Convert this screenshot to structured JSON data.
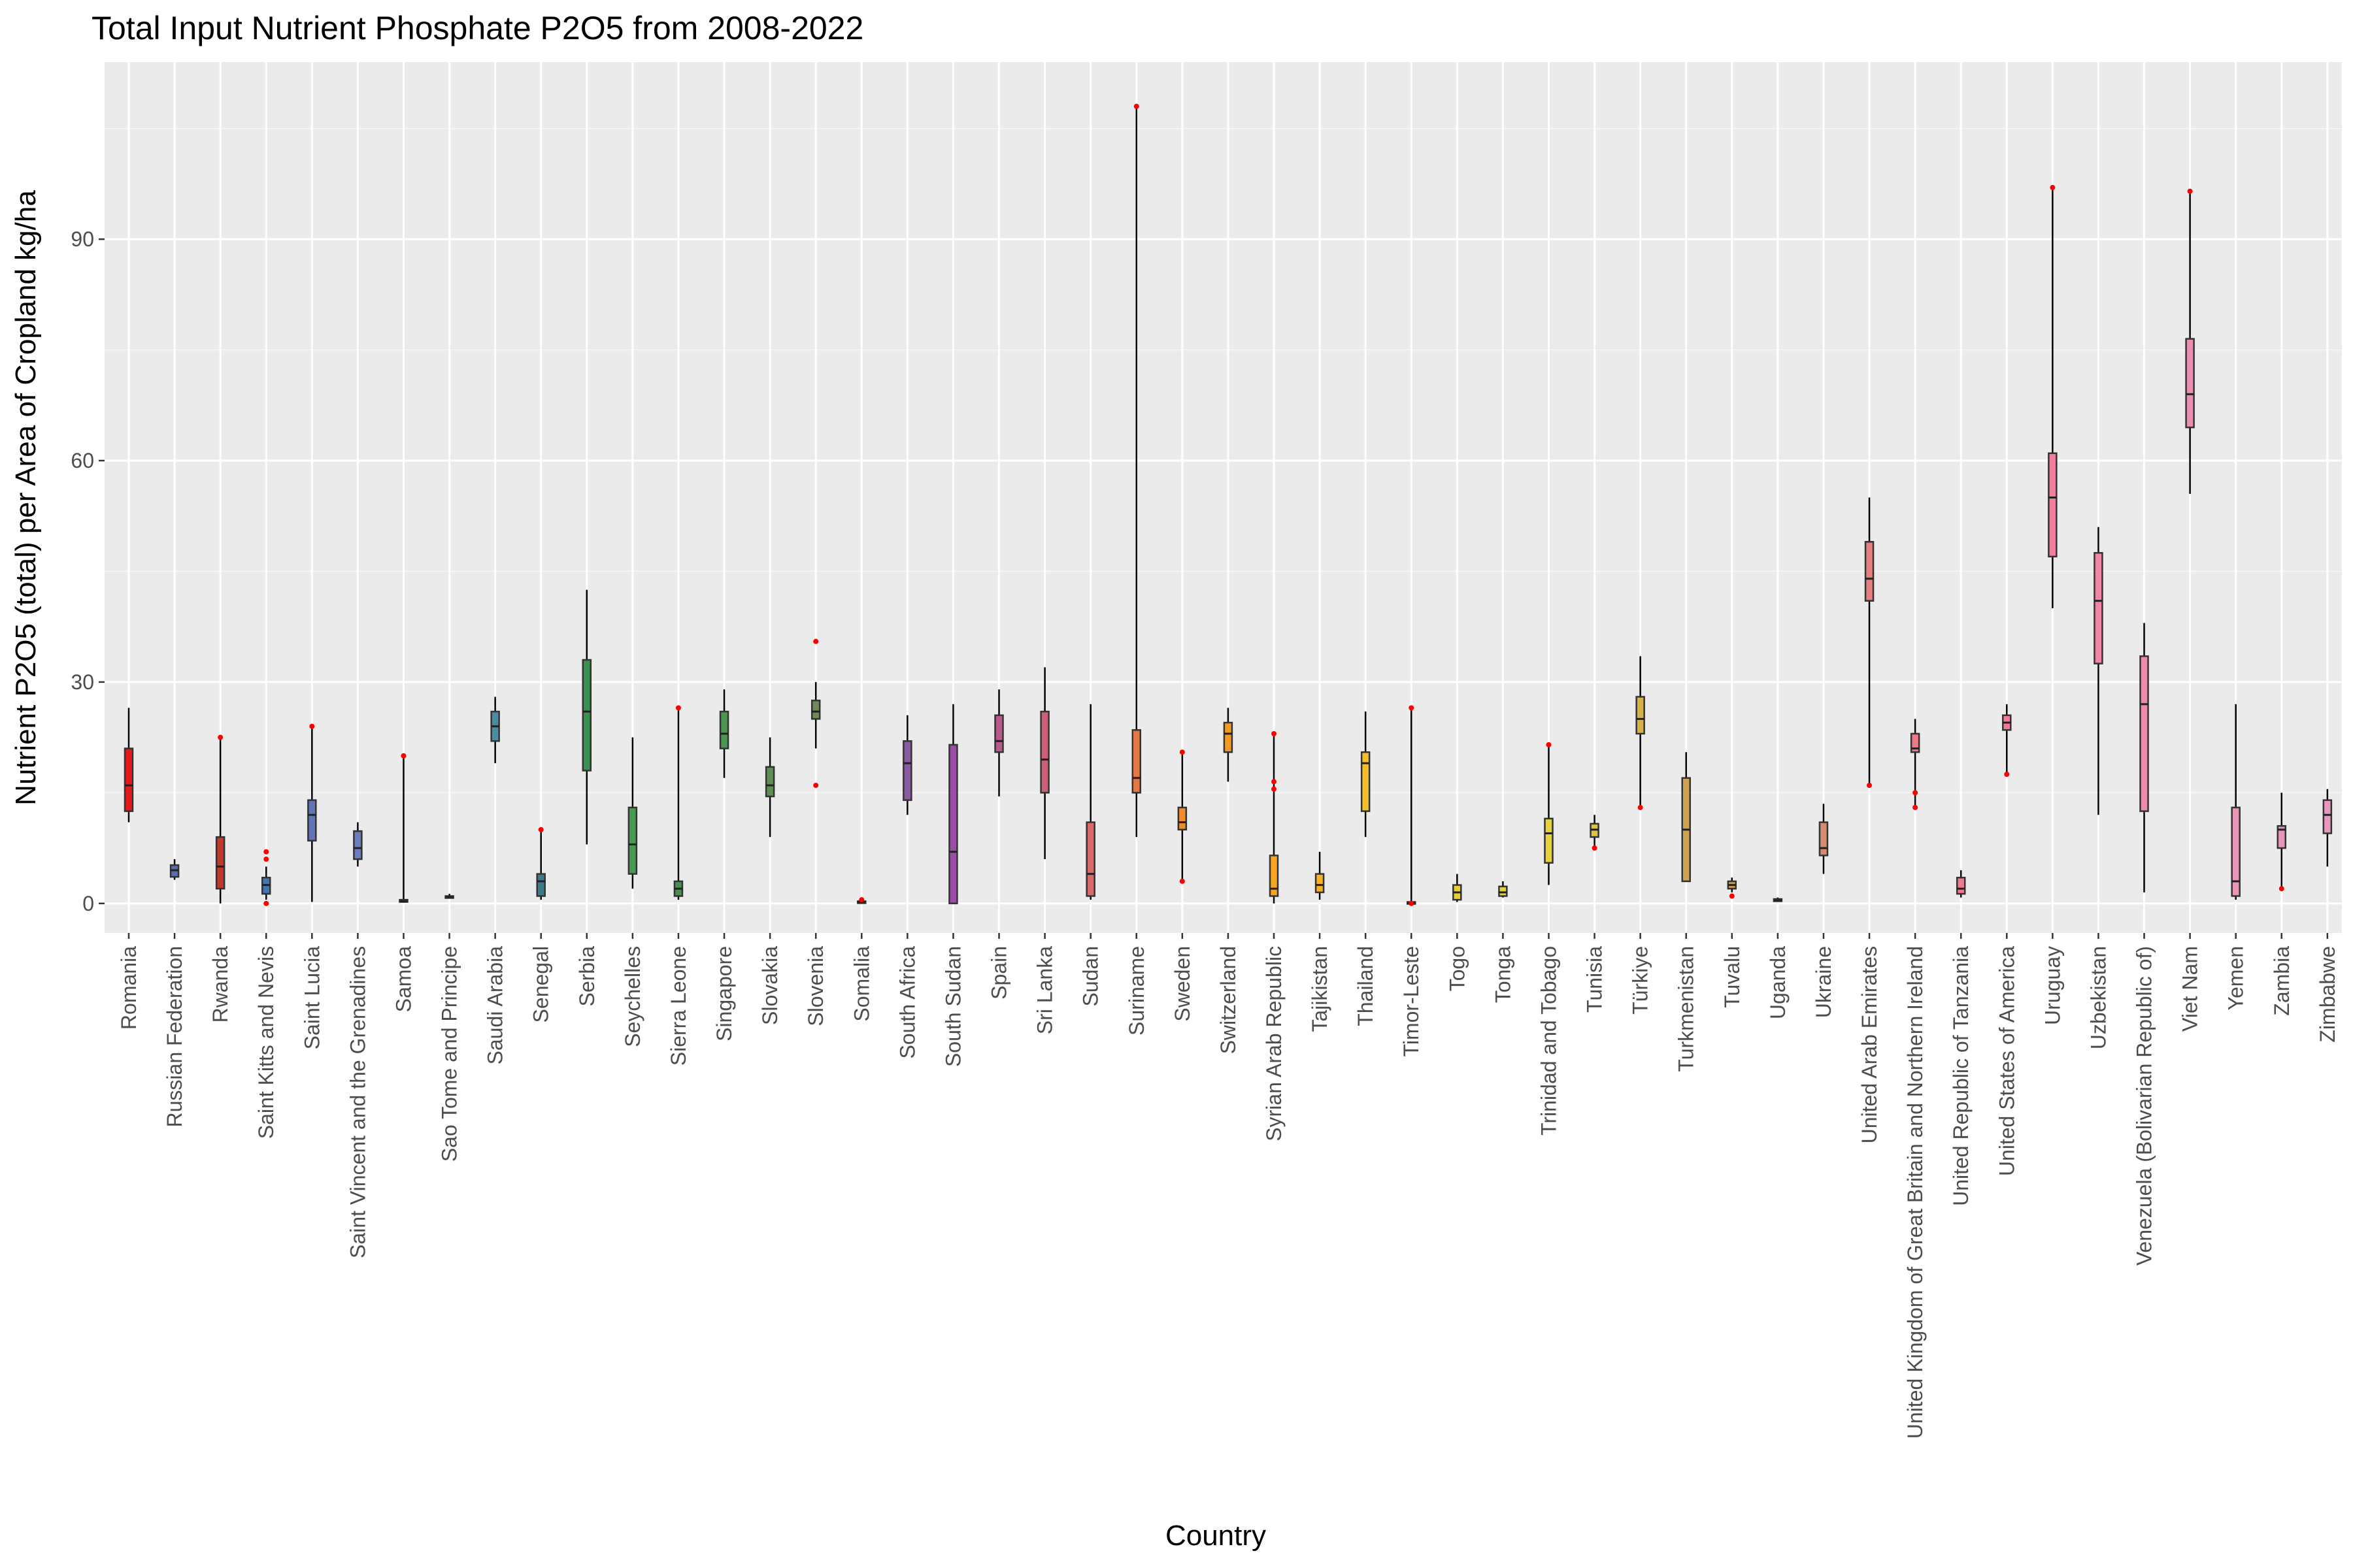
{
  "chart_data": {
    "type": "boxplot",
    "title": "Total Input Nutrient Phosphate P2O5 from 2008-2022",
    "xlabel": "Country",
    "ylabel": "Nutrient P2O5 (total) per Area of Cropland kg/ha",
    "ylim": [
      -4,
      114
    ],
    "yticks": [
      "0",
      "30",
      "60",
      "90"
    ],
    "ytick_values": [
      0,
      30,
      60,
      90
    ],
    "grid": true,
    "legend": "none",
    "colors": {
      "panel_bg": "#ebebeb",
      "grid_major": "#ffffff",
      "outlier": "#ff0000",
      "box_stroke": "#333333",
      "whisker": "#000000"
    },
    "categories": [
      "Romania",
      "Russian Federation",
      "Rwanda",
      "Saint Kitts and Nevis",
      "Saint Lucia",
      "Saint Vincent and the Grenadines",
      "Samoa",
      "Sao Tome and Principe",
      "Saudi Arabia",
      "Senegal",
      "Serbia",
      "Seychelles",
      "Sierra Leone",
      "Singapore",
      "Slovakia",
      "Slovenia",
      "Somalia",
      "South Africa",
      "South Sudan",
      "Spain",
      "Sri Lanka",
      "Sudan",
      "Suriname",
      "Sweden",
      "Switzerland",
      "Syrian Arab Republic",
      "Tajikistan",
      "Thailand",
      "Timor-Leste",
      "Togo",
      "Tonga",
      "Trinidad and Tobago",
      "Tunisia",
      "Türkiye",
      "Turkmenistan",
      "Tuvalu",
      "Uganda",
      "Ukraine",
      "United Arab Emirates",
      "United Kingdom of Great Britain and Northern Ireland",
      "United Republic of Tanzania",
      "United States of America",
      "Uruguay",
      "Uzbekistan",
      "Venezuela (Bolivarian Republic of)",
      "Viet Nam",
      "Yemen",
      "Zambia",
      "Zimbabwe"
    ],
    "series": [
      {
        "min": 11,
        "q1": 12.5,
        "median": 16,
        "q3": 21,
        "max": 26.5,
        "outliers": [],
        "color": "#e41a1c"
      },
      {
        "min": 3.2,
        "q1": 3.6,
        "median": 4.5,
        "q3": 5.2,
        "max": 6,
        "outliers": [],
        "color": "#5b6fb0"
      },
      {
        "min": 0,
        "q1": 2,
        "median": 5,
        "q3": 9,
        "max": 22.5,
        "outliers": [
          22.5
        ],
        "color": "#c0392b"
      },
      {
        "min": 0.5,
        "q1": 1.3,
        "median": 2.5,
        "q3": 3.5,
        "max": 5,
        "outliers": [
          0,
          6,
          7
        ],
        "color": "#4575b4"
      },
      {
        "min": 0.2,
        "q1": 8.5,
        "median": 12,
        "q3": 14,
        "max": 24,
        "outliers": [
          24
        ],
        "color": "#5e76b8"
      },
      {
        "min": 5,
        "q1": 6,
        "median": 7.5,
        "q3": 9.8,
        "max": 11,
        "outliers": [],
        "color": "#6a7dbf"
      },
      {
        "min": 0.1,
        "q1": 0.2,
        "median": 0.3,
        "q3": 0.5,
        "max": 20,
        "outliers": [
          20
        ],
        "color": "#6b7d87"
      },
      {
        "min": 0.7,
        "q1": 0.8,
        "median": 0.9,
        "q3": 1.0,
        "max": 1.3,
        "outliers": [],
        "color": "#6d7d82"
      },
      {
        "min": 19,
        "q1": 22,
        "median": 24,
        "q3": 26,
        "max": 28,
        "outliers": [],
        "color": "#4a8ca1"
      },
      {
        "min": 0.5,
        "q1": 1,
        "median": 3,
        "q3": 4,
        "max": 10,
        "outliers": [
          10
        ],
        "color": "#3b7a8a"
      },
      {
        "min": 8,
        "q1": 18,
        "median": 26,
        "q3": 33,
        "max": 42.5,
        "outliers": [],
        "color": "#3a9150"
      },
      {
        "min": 2,
        "q1": 4,
        "median": 8,
        "q3": 13,
        "max": 22.5,
        "outliers": [],
        "color": "#479a52"
      },
      {
        "min": 0.5,
        "q1": 1,
        "median": 2,
        "q3": 3,
        "max": 26.5,
        "outliers": [
          26.5
        ],
        "color": "#4c8f50"
      },
      {
        "min": 17,
        "q1": 21,
        "median": 23,
        "q3": 26,
        "max": 29,
        "outliers": [],
        "color": "#4c9652"
      },
      {
        "min": 9,
        "q1": 14.5,
        "median": 16,
        "q3": 18.5,
        "max": 22.5,
        "outliers": [],
        "color": "#5e8f55"
      },
      {
        "min": 21,
        "q1": 25,
        "median": 26,
        "q3": 27.5,
        "max": 30,
        "outliers": [
          16,
          35.5
        ],
        "color": "#6f8a57"
      },
      {
        "min": 0,
        "q1": 0.1,
        "median": 0.2,
        "q3": 0.3,
        "max": 0.4,
        "outliers": [
          0.5
        ],
        "color": "#7e6a8c"
      },
      {
        "min": 12,
        "q1": 14,
        "median": 19,
        "q3": 22,
        "max": 25.5,
        "outliers": [],
        "color": "#8a5c9e"
      },
      {
        "min": 0,
        "q1": 0,
        "median": 7,
        "q3": 21.5,
        "max": 27,
        "outliers": [],
        "color": "#984ea3"
      },
      {
        "min": 14.5,
        "q1": 20.5,
        "median": 22,
        "q3": 25.5,
        "max": 29,
        "outliers": [],
        "color": "#b75a8a"
      },
      {
        "min": 6,
        "q1": 15,
        "median": 19.5,
        "q3": 26,
        "max": 32,
        "outliers": [],
        "color": "#c8627a"
      },
      {
        "min": 0.5,
        "q1": 1,
        "median": 4,
        "q3": 11,
        "max": 27,
        "outliers": [],
        "color": "#d96a6a"
      },
      {
        "min": 9,
        "q1": 15,
        "median": 17,
        "q3": 23.5,
        "max": 108,
        "outliers": [
          108
        ],
        "color": "#e47845"
      },
      {
        "min": 3,
        "q1": 10,
        "median": 11,
        "q3": 13,
        "max": 20.5,
        "outliers": [
          3,
          20.5
        ],
        "color": "#ef8a2e"
      },
      {
        "min": 16.5,
        "q1": 20.5,
        "median": 23,
        "q3": 24.5,
        "max": 26.5,
        "outliers": [],
        "color": "#f39a24"
      },
      {
        "min": 0,
        "q1": 1,
        "median": 2,
        "q3": 6.5,
        "max": 23,
        "outliers": [
          15.5,
          16.5,
          23
        ],
        "color": "#f5a523"
      },
      {
        "min": 0.5,
        "q1": 1.5,
        "median": 2.5,
        "q3": 4,
        "max": 7,
        "outliers": [],
        "color": "#f7b125"
      },
      {
        "min": 9,
        "q1": 12.5,
        "median": 19,
        "q3": 20.5,
        "max": 26,
        "outliers": [],
        "color": "#f4bd2a"
      },
      {
        "min": 0,
        "q1": 0,
        "median": 0.1,
        "q3": 0.2,
        "max": 26.5,
        "outliers": [
          0,
          26.5
        ],
        "color": "#f0c72c"
      },
      {
        "min": 0.2,
        "q1": 0.5,
        "median": 1.5,
        "q3": 2.5,
        "max": 4,
        "outliers": [],
        "color": "#e8cf30"
      },
      {
        "min": 0.8,
        "q1": 1,
        "median": 1.5,
        "q3": 2.3,
        "max": 3,
        "outliers": [],
        "color": "#e4d433"
      },
      {
        "min": 2.5,
        "q1": 5.5,
        "median": 9.5,
        "q3": 11.5,
        "max": 21.5,
        "outliers": [
          21.5
        ],
        "color": "#e6d238"
      },
      {
        "min": 7.5,
        "q1": 9,
        "median": 10,
        "q3": 10.8,
        "max": 12,
        "outliers": [
          7.5
        ],
        "color": "#dfc441"
      },
      {
        "min": 13,
        "q1": 23,
        "median": 25,
        "q3": 28,
        "max": 33.5,
        "outliers": [
          13
        ],
        "color": "#d6b348"
      },
      {
        "min": 3,
        "q1": 3,
        "median": 10,
        "q3": 17,
        "max": 20.5,
        "outliers": [],
        "color": "#cfa351"
      },
      {
        "min": 1.5,
        "q1": 2,
        "median": 2.5,
        "q3": 3,
        "max": 3.5,
        "outliers": [
          1
        ],
        "color": "#c99a5a"
      },
      {
        "min": 0.2,
        "q1": 0.3,
        "median": 0.4,
        "q3": 0.6,
        "max": 0.8,
        "outliers": [],
        "color": "#c89466"
      },
      {
        "min": 4,
        "q1": 6.5,
        "median": 7.5,
        "q3": 11,
        "max": 13.5,
        "outliers": [],
        "color": "#d68a71"
      },
      {
        "min": 16,
        "q1": 41,
        "median": 44,
        "q3": 49,
        "max": 55,
        "outliers": [
          16
        ],
        "color": "#e47f80"
      },
      {
        "min": 13,
        "q1": 20.5,
        "median": 21,
        "q3": 23,
        "max": 25,
        "outliers": [
          13,
          15
        ],
        "color": "#ec7b89"
      },
      {
        "min": 0.8,
        "q1": 1.3,
        "median": 2,
        "q3": 3.5,
        "max": 4.5,
        "outliers": [],
        "color": "#ee7a90"
      },
      {
        "min": 17.5,
        "q1": 23.5,
        "median": 24.5,
        "q3": 25.5,
        "max": 27,
        "outliers": [
          17.5
        ],
        "color": "#ef7c97"
      },
      {
        "min": 40,
        "q1": 47,
        "median": 55,
        "q3": 61,
        "max": 97,
        "outliers": [
          97
        ],
        "color": "#f0809e"
      },
      {
        "min": 12,
        "q1": 32.5,
        "median": 41,
        "q3": 47.5,
        "max": 51,
        "outliers": [],
        "color": "#ef86a6"
      },
      {
        "min": 1.5,
        "q1": 12.5,
        "median": 27,
        "q3": 33.5,
        "max": 38,
        "outliers": [],
        "color": "#ed8bac"
      },
      {
        "min": 55.5,
        "q1": 64.5,
        "median": 69,
        "q3": 76.5,
        "max": 96.5,
        "outliers": [
          96.5
        ],
        "color": "#ea8fb2"
      },
      {
        "min": 0.5,
        "q1": 1,
        "median": 3,
        "q3": 13,
        "max": 27,
        "outliers": [],
        "color": "#e895b8"
      },
      {
        "min": 2,
        "q1": 7.5,
        "median": 10,
        "q3": 10.5,
        "max": 15,
        "outliers": [
          2
        ],
        "color": "#e597bb"
      },
      {
        "min": 5,
        "q1": 9.5,
        "median": 12,
        "q3": 14,
        "max": 15.5,
        "outliers": [],
        "color": "#e699bf"
      }
    ]
  }
}
